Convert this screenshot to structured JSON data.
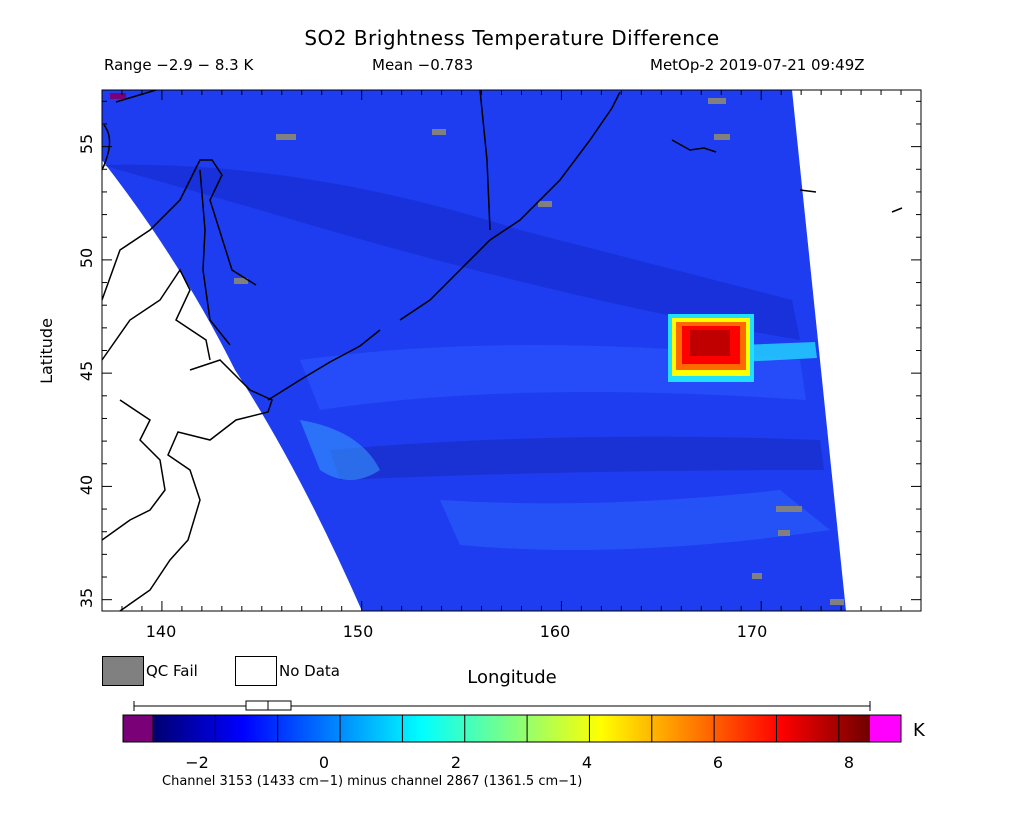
{
  "header": {
    "title": "SO2 Brightness Temperature Difference",
    "range": "Range −2.9 − 8.3 K",
    "mean": "Mean −0.783",
    "satellite": "MetOp-2 2019-07-21 09:49Z"
  },
  "axes": {
    "xlabel": "Longitude",
    "ylabel": "Latitude",
    "xticks": [
      "140",
      "150",
      "160",
      "170"
    ],
    "yticks": [
      "55",
      "50",
      "45",
      "40",
      "35"
    ]
  },
  "legend": {
    "qc_fail": "QC Fail",
    "no_data": "No Data",
    "qc_fail_color": "#808080",
    "no_data_color": "#ffffff"
  },
  "colorbar": {
    "unit": "K",
    "ticks": [
      "−2",
      "0",
      "2",
      "4",
      "6",
      "8"
    ],
    "min": -3,
    "max": 8.5,
    "under_color": "#7a0077",
    "over_color": "#ff00ff",
    "stops": [
      "#000070",
      "#0000ff",
      "#0080ff",
      "#00ffff",
      "#80ff80",
      "#ffff00",
      "#ff8000",
      "#ff0000",
      "#700000"
    ]
  },
  "footer": {
    "channel_note": "Channel 3153 (1433 cm−1) minus channel 2867 (1361.5 cm−1)"
  },
  "chart_data": {
    "type": "heatmap",
    "title": "SO2 Brightness Temperature Difference",
    "xlabel": "Longitude",
    "ylabel": "Latitude",
    "xlim": [
      137,
      178
    ],
    "ylim": [
      34.5,
      57.5
    ],
    "value_range": [
      -2.9,
      8.3
    ],
    "mean": -0.783,
    "unit": "K",
    "hotspot": {
      "lon": 167.5,
      "lat": 46.2,
      "peak_value": 8.3
    }
  }
}
